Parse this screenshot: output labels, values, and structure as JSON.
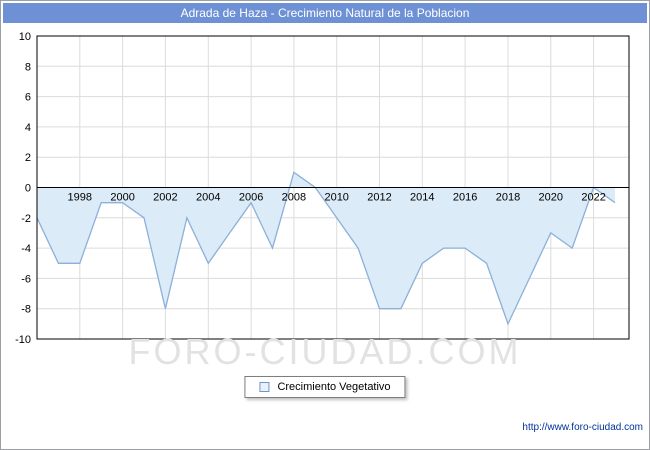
{
  "header": {
    "title": "Adrada de Haza - Crecimiento Natural de la Poblacion",
    "background": "#6e90d4"
  },
  "watermark": "FORO-CIUDAD.COM",
  "legend": {
    "label": "Crecimiento Vegetativo"
  },
  "footer": {
    "url": "http://www.foro-ciudad.com"
  },
  "chart_data": {
    "type": "area",
    "title": "Adrada de Haza - Crecimiento Natural de la Poblacion",
    "x": [
      1996,
      1997,
      1998,
      1999,
      2000,
      2001,
      2002,
      2003,
      2004,
      2005,
      2006,
      2007,
      2008,
      2009,
      2010,
      2011,
      2012,
      2013,
      2014,
      2015,
      2016,
      2017,
      2018,
      2019,
      2020,
      2021,
      2022,
      2023
    ],
    "series": [
      {
        "name": "Crecimiento Vegetativo",
        "values": [
          -2,
          -5,
          -5,
          -1,
          -1,
          -2,
          -8,
          -2,
          -5,
          -3,
          -1,
          -4,
          1,
          0,
          -2,
          -4,
          -8,
          -8,
          -5,
          -4,
          -4,
          -5,
          -9,
          -6,
          -3,
          -4,
          0,
          -1
        ]
      }
    ],
    "ylim": [
      -10,
      10
    ],
    "ytick_step": 2,
    "xticks": [
      1998,
      2000,
      2002,
      2004,
      2006,
      2008,
      2010,
      2012,
      2014,
      2016,
      2018,
      2020,
      2022
    ],
    "grid": true,
    "legend_position": "bottom-center",
    "colors": {
      "line": "#8cb0d9",
      "fill": "#dcebf8",
      "grid": "#dcdcdc",
      "zero_axis": "#000000",
      "plot_border": "#000000"
    }
  }
}
